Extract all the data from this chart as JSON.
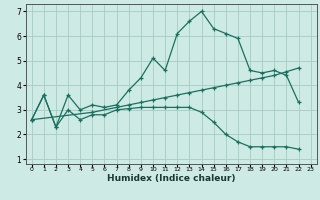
{
  "xlabel": "Humidex (Indice chaleur)",
  "bg_color": "#ceeae4",
  "grid_color": "#aad0c8",
  "line_color": "#1a7060",
  "xlim": [
    -0.5,
    23.5
  ],
  "ylim": [
    0.8,
    7.3
  ],
  "yticks": [
    1,
    2,
    3,
    4,
    5,
    6,
    7
  ],
  "xticks": [
    0,
    1,
    2,
    3,
    4,
    5,
    6,
    7,
    8,
    9,
    10,
    11,
    12,
    13,
    14,
    15,
    16,
    17,
    18,
    19,
    20,
    21,
    22,
    23
  ],
  "series1_x": [
    0,
    1,
    2,
    3,
    4,
    5,
    6,
    7,
    8,
    9,
    10,
    11,
    12,
    13,
    14,
    15,
    16,
    17,
    18,
    19,
    20,
    21,
    22
  ],
  "series1_y": [
    2.6,
    3.6,
    2.3,
    3.6,
    3.0,
    3.2,
    3.1,
    3.2,
    3.8,
    4.3,
    5.1,
    4.6,
    6.1,
    6.6,
    7.0,
    6.3,
    6.1,
    5.9,
    4.6,
    4.5,
    4.6,
    4.4,
    3.3
  ],
  "series2_x": [
    0,
    5,
    7,
    8,
    9,
    10,
    11,
    12,
    13,
    14,
    15,
    16,
    17,
    18,
    19,
    20,
    21,
    22
  ],
  "series2_y": [
    2.6,
    2.9,
    3.1,
    3.2,
    3.3,
    3.4,
    3.5,
    3.6,
    3.7,
    3.8,
    3.9,
    4.0,
    4.1,
    4.2,
    4.3,
    4.4,
    4.55,
    4.7
  ],
  "series3_x": [
    0,
    1,
    2,
    3,
    4,
    5,
    6,
    7,
    8,
    9,
    10,
    11,
    12,
    13,
    14,
    15,
    16,
    17,
    18,
    19,
    20,
    21,
    22
  ],
  "series3_y": [
    2.6,
    3.6,
    2.3,
    3.0,
    2.6,
    2.8,
    2.8,
    3.0,
    3.05,
    3.1,
    3.1,
    3.1,
    3.1,
    3.1,
    2.9,
    2.5,
    2.0,
    1.7,
    1.5,
    1.5,
    1.5,
    1.5,
    1.4
  ]
}
